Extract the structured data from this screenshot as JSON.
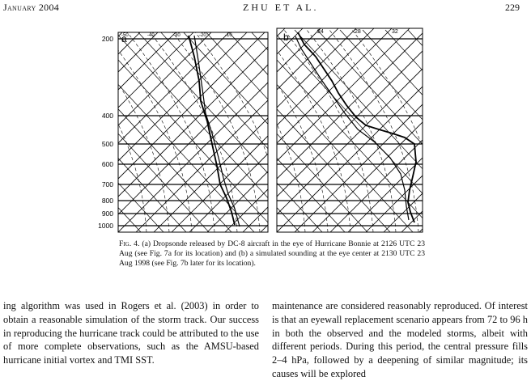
{
  "header": {
    "month_year": "January 2004",
    "authors": "ZHU ET AL.",
    "page_number": "229"
  },
  "figure": {
    "panel_a_label": "a",
    "panel_b_label": "b",
    "pressure_levels": [
      "200",
      "400",
      "500",
      "600",
      "700",
      "800",
      "900",
      "1000"
    ],
    "panel_a_top_temps": [
      "-50",
      "-40",
      "-30",
      "-20",
      "-10"
    ],
    "panel_b_top_temps": [
      "24",
      "28",
      "32"
    ],
    "caption_prefix": "Fig. 4.",
    "caption_text": " (a) Dropsonde released by DC-8 aircraft in the eye of Hurricane Bonnie at 2126 UTC 23 Aug (see Fig. 7a for its location) and (b) a simulated sounding at the eye center at 2130 UTC 23 Aug 1998 (see Fig. 7b later for its location)."
  },
  "body": {
    "left_column": "ing algorithm was used in Rogers et al. (2003) in order to obtain a reasonable simulation of the storm track. Our success in reproducing the hurricane track could be attributed to the use of more complete observations, such as the AMSU-based hurricane initial vortex and TMI SST.",
    "right_column": "maintenance are considered reasonably reproduced. Of interest is that an eyewall replacement scenario appears from 72 to 96 h in both the observed and the modeled storms, albeit with different periods. During this period, the central pressure fills 2–4 hPa, followed by a deepening of similar magnitude; its causes will be explored"
  }
}
